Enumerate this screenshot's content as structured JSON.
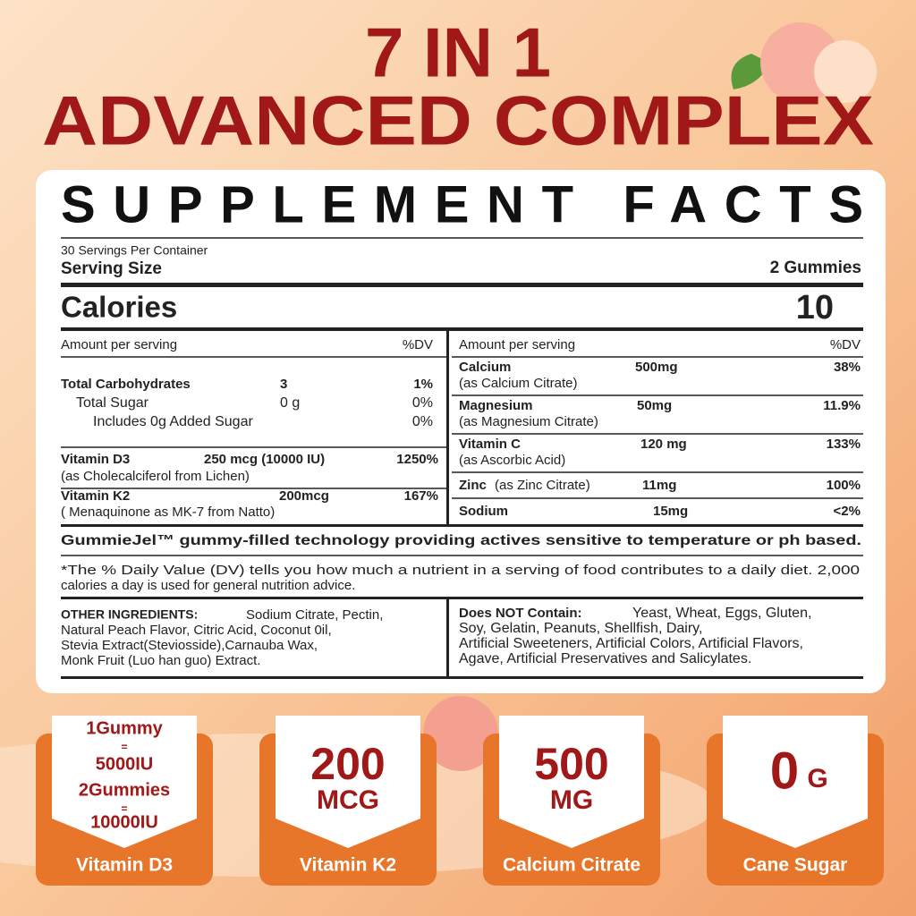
{
  "header": {
    "title_line1": "7 IN 1",
    "title_line2": "ADVANCED COMPLEX"
  },
  "facts": {
    "title": "SUPPLEMENT FACTS",
    "servings": "30 Servings Per Container",
    "serving_size_label": "Serving Size",
    "serving_size": "2 Gummies",
    "calories_label": "Calories",
    "calories": "10",
    "left": {
      "amount_label": "Amount per serving",
      "dv_label": "%DV",
      "rows": [
        {
          "name": "Total Carbohydrates",
          "amount": "3",
          "dv": "1%"
        },
        {
          "name": "Total Sugar",
          "amount": "0 g",
          "dv": "0%"
        },
        {
          "name": "Includes 0g Added Sugar",
          "dv": "0%"
        },
        {
          "name": "Vitamin D3",
          "amount": "250 mcg (10000 IU)",
          "dv": "1250%",
          "sub": "(as Cholecalciferol from Lichen)"
        },
        {
          "name": "Vitamin K2",
          "amount": "200mcg",
          "dv": "167%",
          "sub": "( Menaquinone as MK-7 from Natto)"
        }
      ]
    },
    "right": {
      "amount_label": "Amount per serving",
      "dv_label": "%DV",
      "rows": [
        {
          "name": "Calcium",
          "amount": "500mg",
          "dv": "38%",
          "sub": "(as Calcium Citrate)"
        },
        {
          "name": "Magnesium",
          "amount": "50mg",
          "dv": "11.9%",
          "sub": "(as Magnesium Citrate)"
        },
        {
          "name": "Vitamin C",
          "amount": "120 mg",
          "dv": "133%",
          "sub": "(as Ascorbic Acid)"
        },
        {
          "name": "Zinc",
          "amount": "11mg",
          "dv": "100%",
          "sub": "(as Zinc Citrate)"
        },
        {
          "name": "Sodium",
          "amount": "15mg",
          "dv": "<2%"
        }
      ]
    },
    "technology": "GummieJel™ gummy-filled technology providing actives sensitive to temperature or ph based.",
    "footnote": [
      "*The % Daily Value (DV) tells you how much a nutrient in a serving of food contributes to a daily diet. 2,000",
      "calories a day is used for general nutrition advice."
    ],
    "other_ingredients": {
      "label": "OTHER INGREDIENTS:",
      "lines": [
        "Sodium Citrate, Pectin,",
        "Natural Peach Flavor, Citric Acid, Coconut 0il,",
        "Stevia Extract(Steviosside),Carnauba Wax,",
        "Monk Fruit (Luo han guo) Extract."
      ]
    },
    "does_not_contain": {
      "label": "Does NOT Contain:",
      "lines": [
        "Yeast, Wheat, Eggs, Gluten,",
        "Soy, Gelatin, Peanuts, Shellfish, Dairy,",
        "Artificial Sweeteners, Artificial Colors, Artificial Flavors,",
        "Agave, Artificial Preservatives and Salicylates."
      ]
    }
  },
  "badges": [
    {
      "lines": [
        "1Gummy",
        "=",
        "5000IU",
        "2Gummies",
        "=",
        "10000IU"
      ],
      "label": "Vitamin D3"
    },
    {
      "value": "200",
      "unit": "MCG",
      "label": "Vitamin K2"
    },
    {
      "value": "500",
      "unit": "MG",
      "label": "Calcium Citrate"
    },
    {
      "value": "0",
      "unit": "G",
      "label": "Cane Sugar"
    }
  ]
}
